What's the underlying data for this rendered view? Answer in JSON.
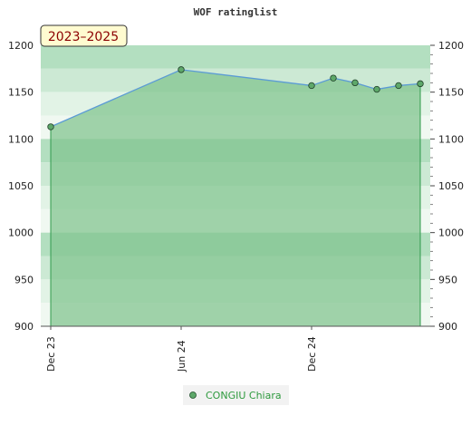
{
  "chart_data": {
    "type": "area",
    "title": "WOF ratinglist",
    "period_label": "2023–2025",
    "xlabel": "",
    "ylabel": "",
    "ylim": [
      900,
      1200
    ],
    "yticks": [
      900,
      950,
      1000,
      1050,
      1100,
      1150,
      1200
    ],
    "x_ticks": [
      "Dec 23",
      "Jun 24",
      "Dec 24"
    ],
    "grid": true,
    "legend_position": "bottom",
    "series": [
      {
        "name": "CONGIU Chiara",
        "x": [
          "2023-12",
          "2024-06",
          "2024-12",
          "2025-01",
          "2025-02",
          "2025-03",
          "2025-04",
          "2025-05"
        ],
        "values": [
          1113,
          1174,
          1157,
          1165,
          1160,
          1153,
          1157,
          1159
        ]
      }
    ]
  },
  "colors": {
    "line": "#5b9bd5",
    "area": "#7fc48e",
    "marker": "#5ea86a",
    "legend_text": "#2e9a3e",
    "badge_bg": "#fffbd0",
    "badge_text": "#8b0000"
  }
}
